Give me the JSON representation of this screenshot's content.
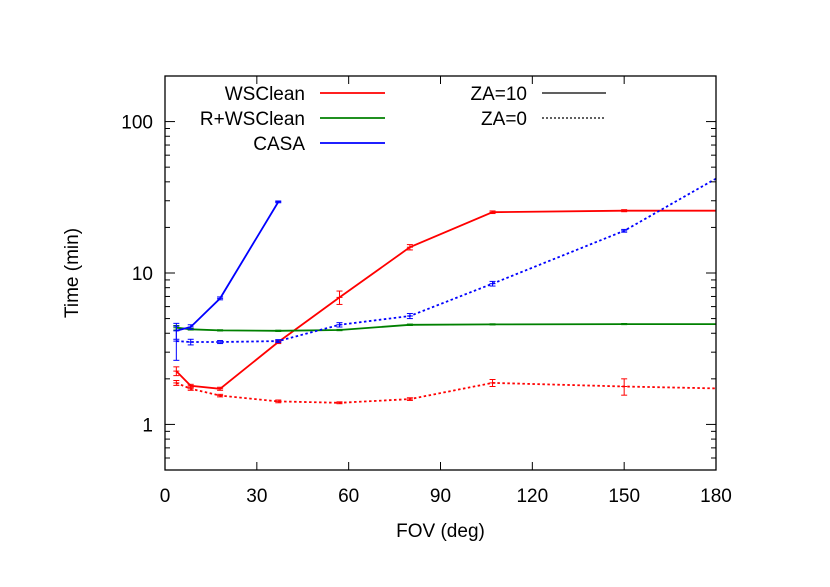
{
  "chart_data": {
    "type": "line",
    "title": "",
    "xlabel": "FOV (deg)",
    "ylabel": "Time (min)",
    "xlim": [
      0,
      180
    ],
    "ylim": [
      0.5,
      200
    ],
    "yscale": "log",
    "grid": false,
    "legend_placement": "top",
    "x_ticks": [
      0,
      30,
      60,
      90,
      120,
      150,
      180
    ],
    "y_ticks": [
      1,
      10,
      100
    ],
    "x_tick_labels": [
      "0",
      "30",
      "60",
      "90",
      "120",
      "150",
      "180"
    ],
    "y_tick_labels": [
      "1",
      "10",
      "100"
    ],
    "legend_algorithms": [
      {
        "name": "WSClean",
        "color": "#ff0000"
      },
      {
        "name": "R+WSClean",
        "color": "#008000"
      },
      {
        "name": "CASA",
        "color": "#0000ff"
      }
    ],
    "legend_styles": [
      {
        "name": "ZA=10",
        "dash": "solid"
      },
      {
        "name": "ZA=0",
        "dash": "dotted"
      }
    ],
    "series": [
      {
        "name": "WSClean",
        "za": "ZA=10",
        "color": "#ff0000",
        "dash": "solid",
        "x": [
          3.7,
          8.4,
          18,
          37,
          57,
          80,
          107,
          150,
          180
        ],
        "y": [
          2.25,
          1.8,
          1.72,
          3.5,
          6.9,
          14.8,
          25.2,
          25.8,
          25.8
        ],
        "err": [
          0.15,
          0.04,
          0.04,
          0.08,
          0.7,
          0.6,
          0.5,
          0.4,
          0
        ]
      },
      {
        "name": "WSClean",
        "za": "ZA=0",
        "color": "#ff0000",
        "dash": "dotted",
        "x": [
          3.7,
          8.4,
          18,
          37,
          57,
          80,
          107,
          150,
          180
        ],
        "y": [
          1.88,
          1.72,
          1.55,
          1.42,
          1.39,
          1.47,
          1.88,
          1.78,
          1.73
        ],
        "err": [
          0.07,
          0.04,
          0.03,
          0.03,
          0.02,
          0.03,
          0.1,
          0.22,
          0
        ]
      },
      {
        "name": "R+WSClean",
        "za": "ZA=10",
        "color": "#008000",
        "dash": "solid",
        "x": [
          3.7,
          8.4,
          18,
          37,
          57,
          80,
          107,
          150,
          180
        ],
        "y": [
          4.35,
          4.25,
          4.18,
          4.15,
          4.2,
          4.55,
          4.58,
          4.6,
          4.6
        ],
        "err": [
          0.15,
          0.05,
          0.04,
          0.04,
          0.04,
          0.05,
          0.04,
          0.04,
          0
        ]
      },
      {
        "name": "CASA",
        "za": "ZA=10",
        "color": "#0000ff",
        "dash": "solid",
        "x": [
          3.7,
          8.4,
          18,
          37
        ],
        "y": [
          4.15,
          4.4,
          6.8,
          29.5
        ],
        "err": [
          0.5,
          0.15,
          0.15,
          0.4
        ]
      },
      {
        "name": "CASA",
        "za": "ZA=0",
        "color": "#0000ff",
        "dash": "dotted",
        "x": [
          3.7,
          8.4,
          18,
          37,
          57,
          80,
          107,
          150,
          180
        ],
        "y": [
          3.55,
          3.5,
          3.5,
          3.55,
          4.55,
          5.2,
          8.5,
          19,
          42
        ],
        "err": [
          0.9,
          0.15,
          0.08,
          0.08,
          0.15,
          0.2,
          0.3,
          0.4,
          0
        ]
      }
    ]
  }
}
